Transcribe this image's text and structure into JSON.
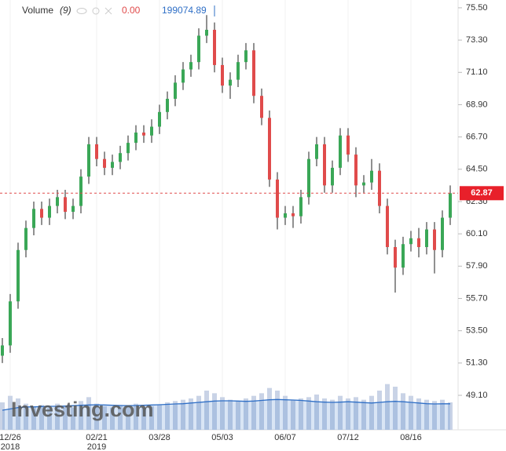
{
  "chart_data": {
    "type": "candlestick",
    "legend_name": "Volume",
    "legend_period": "(9)",
    "legend_change": "0.00",
    "watermark": "Investing.com",
    "up_color": "#3aa757",
    "down_color": "#e04b4b",
    "volume_color": "#c9d3e6",
    "volume_ma_color": "#2f6fc6",
    "ylim": [
      46.75,
      76.03
    ],
    "vlim": [
      0,
      1200000
    ],
    "yticks": [
      {
        "value": 49.1,
        "label": "49.10"
      },
      {
        "value": 51.3,
        "label": "51.30"
      },
      {
        "value": 53.5,
        "label": "53.50"
      },
      {
        "value": 55.7,
        "label": "55.70"
      },
      {
        "value": 57.9,
        "label": "57.90"
      },
      {
        "value": 60.1,
        "label": "60.10"
      },
      {
        "value": 62.3,
        "label": "62.30"
      },
      {
        "value": 64.5,
        "label": "64.50"
      },
      {
        "value": 66.7,
        "label": "66.70"
      },
      {
        "value": 68.9,
        "label": "68.90"
      },
      {
        "value": 71.1,
        "label": "71.10"
      },
      {
        "value": 73.3,
        "label": "73.30"
      },
      {
        "value": 75.5,
        "label": "75.50"
      }
    ],
    "categories": [
      null,
      "12/26",
      null,
      null,
      null,
      null,
      null,
      null,
      null,
      null,
      null,
      null,
      "02/21",
      null,
      null,
      null,
      null,
      null,
      null,
      null,
      "03/28",
      null,
      null,
      null,
      null,
      null,
      null,
      null,
      "05/03",
      null,
      null,
      null,
      null,
      null,
      null,
      null,
      "06/07",
      null,
      null,
      null,
      null,
      null,
      null,
      null,
      "07/12",
      null,
      null,
      null,
      null,
      null,
      null,
      null,
      "08/16",
      null,
      null,
      null,
      null,
      null
    ],
    "category_years": [
      null,
      "2018",
      null,
      null,
      null,
      null,
      null,
      null,
      null,
      null,
      null,
      null,
      "2019",
      null,
      null,
      null,
      null,
      null,
      null,
      null,
      null,
      null,
      null,
      null,
      null,
      null,
      null,
      null,
      null,
      null,
      null,
      null,
      null,
      null,
      null,
      null,
      null,
      null,
      null,
      null,
      null,
      null,
      null,
      null,
      null,
      null,
      null,
      null,
      null,
      null,
      null,
      null,
      null,
      null,
      null,
      null,
      null,
      null
    ],
    "open": [
      51.8,
      52.5,
      55.5,
      59,
      60.5,
      61.8,
      61.2,
      62,
      62.6,
      61.6,
      62,
      64,
      66.2,
      65.2,
      64.6,
      65,
      65.6,
      66.3,
      67,
      66.8,
      67.4,
      68.4,
      69.3,
      70.4,
      71.3,
      71.8,
      73.6,
      74,
      71.6,
      70.2,
      70.6,
      71.8,
      72.6,
      69.5,
      68,
      63.8,
      61.2,
      61.5,
      61.3,
      62.6,
      65.2,
      66.2,
      63.4,
      64.6,
      66.8,
      65.5,
      63.4,
      63.6,
      64.4,
      62,
      59.2,
      57.8,
      59.4,
      59.8,
      59.2,
      60.4,
      59,
      61.2
    ],
    "high": [
      53,
      56,
      59.5,
      61,
      62.3,
      62.3,
      62.5,
      63.1,
      63.1,
      62.5,
      64.5,
      66.7,
      66.7,
      65.7,
      65.5,
      66.1,
      66.8,
      67.5,
      67.5,
      67.9,
      68.9,
      69.8,
      70.9,
      71.8,
      72.3,
      74.1,
      75,
      74.5,
      72.1,
      71.1,
      72.3,
      73.1,
      73.1,
      70,
      68.5,
      64.3,
      62,
      62,
      63.1,
      65.7,
      66.7,
      66.7,
      65.1,
      67.3,
      67.3,
      66,
      64.1,
      65.2,
      64.9,
      62.5,
      59.7,
      59.9,
      60.3,
      60.5,
      60.9,
      60.9,
      61.7,
      63.4
    ],
    "low": [
      51.3,
      52,
      55,
      58.5,
      60,
      60.7,
      60.7,
      61.5,
      61.1,
      61.1,
      61.5,
      63.5,
      64.7,
      64.1,
      64.1,
      64.5,
      65.1,
      65.8,
      66.3,
      66.3,
      66.9,
      67.9,
      68.8,
      69.9,
      70.8,
      71.3,
      73.1,
      71.1,
      69.7,
      69.3,
      70.1,
      71.3,
      69,
      67.5,
      63.3,
      60.4,
      60.7,
      60.5,
      60.8,
      62.1,
      64.7,
      62.9,
      62.9,
      64.1,
      65,
      62.6,
      62.9,
      63.1,
      61.5,
      58.7,
      56.1,
      57.3,
      58.9,
      58.5,
      58.7,
      57.4,
      58.5,
      60.7
    ],
    "close": [
      52.5,
      55.5,
      59,
      60.5,
      61.8,
      61.2,
      62,
      62.6,
      61.6,
      62,
      64,
      66.2,
      65.2,
      64.6,
      65,
      65.6,
      66.3,
      67,
      66.8,
      67.4,
      68.4,
      69.3,
      70.4,
      71.3,
      71.8,
      73.6,
      74,
      71.6,
      70.2,
      70.6,
      71.8,
      72.6,
      69.5,
      68,
      63.8,
      61.2,
      61.5,
      61.3,
      62.6,
      65.2,
      66.2,
      63.4,
      64.6,
      66.8,
      65.5,
      63.4,
      63.6,
      64.4,
      62,
      59.2,
      57.8,
      59.4,
      59.8,
      59.2,
      60.4,
      59,
      61.2,
      62.87
    ],
    "volume": [
      210000,
      260000,
      240000,
      200000,
      180000,
      190000,
      170000,
      200000,
      180000,
      170000,
      220000,
      250000,
      200000,
      180000,
      170000,
      190000,
      180000,
      200000,
      170000,
      180000,
      190000,
      210000,
      220000,
      230000,
      240000,
      260000,
      300000,
      280000,
      250000,
      230000,
      220000,
      240000,
      260000,
      280000,
      320000,
      300000,
      260000,
      230000,
      240000,
      250000,
      270000,
      240000,
      230000,
      260000,
      240000,
      250000,
      230000,
      260000,
      300000,
      350000,
      330000,
      280000,
      260000,
      240000,
      230000,
      220000,
      230000,
      210000
    ],
    "volume_ma": [
      150000,
      160000,
      170000,
      175000,
      175000,
      178000,
      180000,
      180000,
      182000,
      185000,
      188000,
      190000,
      192000,
      190000,
      188000,
      186000,
      185000,
      186000,
      188000,
      190000,
      192000,
      195000,
      198000,
      200000,
      205000,
      210000,
      215000,
      220000,
      222000,
      222000,
      220000,
      218000,
      220000,
      225000,
      230000,
      232000,
      230000,
      228000,
      225000,
      220000,
      215000,
      212000,
      210000,
      212000,
      215000,
      212000,
      208000,
      205000,
      210000,
      215000,
      218000,
      215000,
      210000,
      205000,
      200000,
      198000,
      199000,
      199074.89
    ]
  }
}
